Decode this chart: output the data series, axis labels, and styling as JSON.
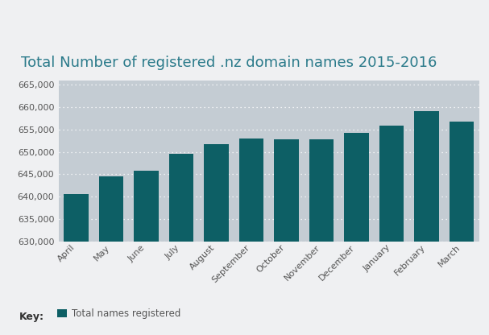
{
  "title": "Total Number of registered .nz domain names 2015-2016",
  "categories": [
    "April",
    "May",
    "June",
    "July",
    "August",
    "September",
    "October",
    "November",
    "December",
    "January",
    "February",
    "March"
  ],
  "values": [
    640500,
    644500,
    645700,
    649500,
    651700,
    653000,
    652800,
    652800,
    654200,
    655800,
    659200,
    656800
  ],
  "bar_color": "#0d5f65",
  "figure_bg_color": "#eff0f2",
  "plot_bg_color": "#c4ccd3",
  "title_color": "#2a7a8a",
  "tick_color": "#555555",
  "ylim": [
    630000,
    666000
  ],
  "yticks": [
    630000,
    635000,
    640000,
    645000,
    650000,
    655000,
    660000,
    665000
  ],
  "legend_label": "Total names registered",
  "title_fontsize": 13,
  "tick_fontsize": 8,
  "legend_fontsize": 8.5,
  "key_fontsize": 9
}
